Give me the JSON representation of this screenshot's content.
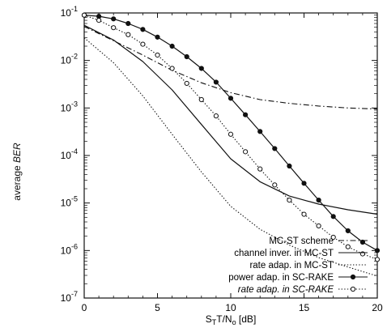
{
  "chart_data": {
    "type": "line",
    "title": "",
    "xlabel": "S_T T/N_o [dB]",
    "ylabel_prefix": "average",
    "ylabel_italic": "BER",
    "xlim": [
      0,
      20
    ],
    "ylim": [
      1e-07,
      0.1
    ],
    "yscale": "log",
    "x_ticks": [
      0,
      5,
      10,
      15,
      20
    ],
    "y_ticks": [
      {
        "value": 0.1,
        "exp": "-1"
      },
      {
        "value": 0.01,
        "exp": "-2"
      },
      {
        "value": 0.001,
        "exp": "-3"
      },
      {
        "value": 0.0001,
        "exp": "-4"
      },
      {
        "value": 1e-05,
        "exp": "-5"
      },
      {
        "value": 1e-06,
        "exp": "-6"
      },
      {
        "value": 1e-07,
        "exp": "-7"
      }
    ],
    "grid": false,
    "legend_position": "bottom-right",
    "series": [
      {
        "name": "MC-ST scheme",
        "style": "dashdot",
        "marker": "none",
        "x": [
          0,
          2,
          4,
          6,
          8,
          10,
          12,
          14,
          16,
          18,
          20
        ],
        "y": [
          0.052,
          0.026,
          0.013,
          0.0062,
          0.0034,
          0.0021,
          0.0015,
          0.00125,
          0.0011,
          0.001,
          0.00095
        ]
      },
      {
        "name": "channel inver. in MC-ST",
        "style": "solid",
        "marker": "none",
        "x": [
          0,
          2,
          4,
          6,
          8,
          10,
          12,
          14,
          16,
          18,
          20
        ],
        "y": [
          0.055,
          0.027,
          0.0095,
          0.0024,
          0.00045,
          8.5e-05,
          2.8e-05,
          1.4e-05,
          9.5e-06,
          7.2e-06,
          5.8e-06
        ]
      },
      {
        "name": "rate adap. in MC-ST",
        "style": "dotted",
        "marker": "none",
        "x": [
          0,
          2,
          4,
          6,
          8,
          10,
          12,
          14,
          16,
          18,
          20
        ],
        "y": [
          0.03,
          0.009,
          0.0018,
          0.00028,
          4.5e-05,
          8.5e-06,
          2.8e-06,
          1.3e-06,
          7.1e-07,
          4.5e-07,
          2.9e-07
        ]
      },
      {
        "name": "power adap. in SC-RAKE",
        "style": "solid",
        "marker": "filled-circle",
        "x": [
          0,
          1,
          2,
          3,
          4,
          5,
          6,
          7,
          8,
          9,
          10,
          11,
          12,
          13,
          14,
          15,
          16,
          17,
          18,
          19,
          20
        ],
        "y": [
          0.09,
          0.085,
          0.075,
          0.06,
          0.045,
          0.031,
          0.02,
          0.012,
          0.0068,
          0.0035,
          0.0016,
          0.00072,
          0.00032,
          0.00014,
          6e-05,
          2.6e-05,
          1.15e-05,
          5.2e-06,
          2.6e-06,
          1.5e-06,
          1e-06
        ]
      },
      {
        "name": "rate adap. in SC-RAKE",
        "style": "dotted",
        "marker": "open-circle",
        "x": [
          0,
          1,
          2,
          3,
          4,
          5,
          6,
          7,
          8,
          9,
          10,
          11,
          12,
          13,
          14,
          15,
          16,
          17,
          18,
          19,
          20
        ],
        "y": [
          0.09,
          0.07,
          0.049,
          0.035,
          0.022,
          0.013,
          0.0068,
          0.0033,
          0.0015,
          0.00068,
          0.00028,
          0.00012,
          5.2e-05,
          2.4e-05,
          1.15e-05,
          5.8e-06,
          3.3e-06,
          1.9e-06,
          1.2e-06,
          8.5e-07,
          6.5e-07
        ]
      }
    ]
  }
}
